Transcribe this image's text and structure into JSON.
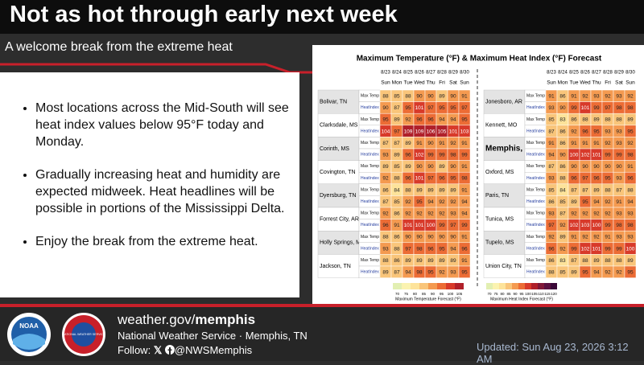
{
  "header": {
    "title": "Not as hot through early next week",
    "subtitle": "A welcome break from the extreme heat"
  },
  "bullets": [
    "Most locations across the Mid-South will see heat index values below 95°F today and Monday.",
    "Gradually increasing heat and humidity are expected midweek. Heat headlines will be possible in portions of the Mississippi Delta.",
    "Enjoy the break from the extreme heat."
  ],
  "forecast": {
    "title": "Maximum Temperature (°F) & Maximum Heat Index (°F) Forecast",
    "dates": [
      "8/23",
      "8/24",
      "8/25",
      "8/26",
      "8/27",
      "8/28",
      "8/29",
      "8/30"
    ],
    "days": [
      "Sun",
      "Mon",
      "Tue",
      "Wed",
      "Thu",
      "Fri",
      "Sat",
      "Sun"
    ],
    "row_labels": [
      "Max Temp",
      "HeatIndex"
    ],
    "color_scale": {
      "ticks": [
        70,
        75,
        80,
        85,
        90,
        95,
        100,
        105,
        110,
        115,
        120
      ],
      "colors": [
        "#e2efb2",
        "#fbf3b0",
        "#fde39a",
        "#f9c57a",
        "#f49a50",
        "#ec6c35",
        "#d83a2a",
        "#b0202a",
        "#801838",
        "#5a1040",
        "#3a0838"
      ]
    },
    "temp_legend": {
      "ticks": [
        70,
        75,
        80,
        85,
        90,
        95,
        100,
        105
      ],
      "label": "Maximum Temperature Forecast (°F)"
    },
    "hi_legend": {
      "ticks": [
        70,
        75,
        80,
        85,
        90,
        95,
        100,
        105,
        110,
        115,
        120
      ],
      "label": "Maximum Heat Index Forecast (°F)"
    },
    "locations": [
      {
        "name": "Bolivar, TN",
        "max_temp": [
          88,
          85,
          88,
          90,
          90,
          89,
          90,
          91
        ],
        "heat_index": [
          90,
          87,
          95,
          101,
          97,
          95,
          95,
          97
        ]
      },
      {
        "name": "Clarksdale, MS",
        "max_temp": [
          95,
          89,
          92,
          96,
          96,
          94,
          94,
          95
        ],
        "heat_index": [
          104,
          97,
          109,
          109,
          106,
          105,
          101,
          103
        ]
      },
      {
        "name": "Corinth, MS",
        "max_temp": [
          87,
          87,
          89,
          91,
          90,
          91,
          92,
          91
        ],
        "heat_index": [
          93,
          89,
          96,
          102,
          99,
          99,
          98,
          99
        ]
      },
      {
        "name": "Covington, TN",
        "max_temp": [
          89,
          85,
          89,
          90,
          90,
          89,
          90,
          91
        ],
        "heat_index": [
          92,
          88,
          96,
          101,
          97,
          96,
          95,
          98
        ]
      },
      {
        "name": "Dyersburg, TN",
        "max_temp": [
          86,
          84,
          88,
          89,
          89,
          89,
          89,
          91
        ],
        "heat_index": [
          87,
          85,
          92,
          95,
          94,
          92,
          92,
          94
        ]
      },
      {
        "name": "Forrest City, AR",
        "max_temp": [
          92,
          86,
          92,
          92,
          92,
          92,
          93,
          94
        ],
        "heat_index": [
          96,
          91,
          101,
          101,
          100,
          99,
          97,
          99
        ]
      },
      {
        "name": "Holly Springs, MS",
        "max_temp": [
          88,
          86,
          90,
          90,
          90,
          90,
          90,
          91
        ],
        "heat_index": [
          93,
          88,
          97,
          98,
          96,
          95,
          94,
          96
        ]
      },
      {
        "name": "Jackson, TN",
        "max_temp": [
          88,
          86,
          89,
          89,
          89,
          89,
          89,
          91
        ],
        "heat_index": [
          89,
          87,
          94,
          98,
          95,
          92,
          93,
          95
        ]
      },
      {
        "name": "Jonesboro, AR",
        "max_temp": [
          91,
          86,
          91,
          92,
          93,
          92,
          93,
          92
        ],
        "heat_index": [
          93,
          90,
          99,
          101,
          99,
          97,
          98,
          98
        ]
      },
      {
        "name": "Kennett, MO",
        "max_temp": [
          85,
          83,
          86,
          88,
          89,
          88,
          88,
          89
        ],
        "heat_index": [
          87,
          86,
          92,
          96,
          95,
          93,
          93,
          95
        ]
      },
      {
        "name": "Memphis, TN",
        "emphasis": true,
        "max_temp": [
          91,
          86,
          91,
          91,
          91,
          92,
          93,
          92
        ],
        "heat_index": [
          94,
          90,
          100,
          102,
          101,
          99,
          99,
          98
        ]
      },
      {
        "name": "Oxford, MS",
        "max_temp": [
          87,
          86,
          90,
          90,
          90,
          90,
          90,
          91
        ],
        "heat_index": [
          93,
          88,
          96,
          97,
          96,
          95,
          93,
          96
        ]
      },
      {
        "name": "Paris, TN",
        "max_temp": [
          85,
          84,
          87,
          87,
          89,
          88,
          87,
          88
        ],
        "heat_index": [
          86,
          85,
          89,
          95,
          94,
          92,
          91,
          94
        ]
      },
      {
        "name": "Tunica, MS",
        "max_temp": [
          93,
          87,
          92,
          92,
          92,
          92,
          93,
          93
        ],
        "heat_index": [
          97,
          92,
          102,
          103,
          100,
          99,
          98,
          98
        ]
      },
      {
        "name": "Tupelo, MS",
        "max_temp": [
          92,
          89,
          91,
          92,
          92,
          91,
          93,
          93
        ],
        "heat_index": [
          96,
          92,
          99,
          102,
          101,
          99,
          99,
          100
        ]
      },
      {
        "name": "Union City, TN",
        "max_temp": [
          86,
          83,
          87,
          88,
          89,
          88,
          88,
          89
        ],
        "heat_index": [
          88,
          85,
          89,
          95,
          94,
          92,
          92,
          95
        ]
      }
    ]
  },
  "footer": {
    "site_prefix": "weather.gov/",
    "site_office": "memphis",
    "office": "National Weather Service · Memphis, TN",
    "follow": "Follow:",
    "handle": "@NWSMemphis",
    "updated": "Updated: Sun Aug 23, 2026 3:12 AM",
    "logos": [
      "NOAA",
      "NATIONAL WEATHER SERVICE"
    ]
  }
}
